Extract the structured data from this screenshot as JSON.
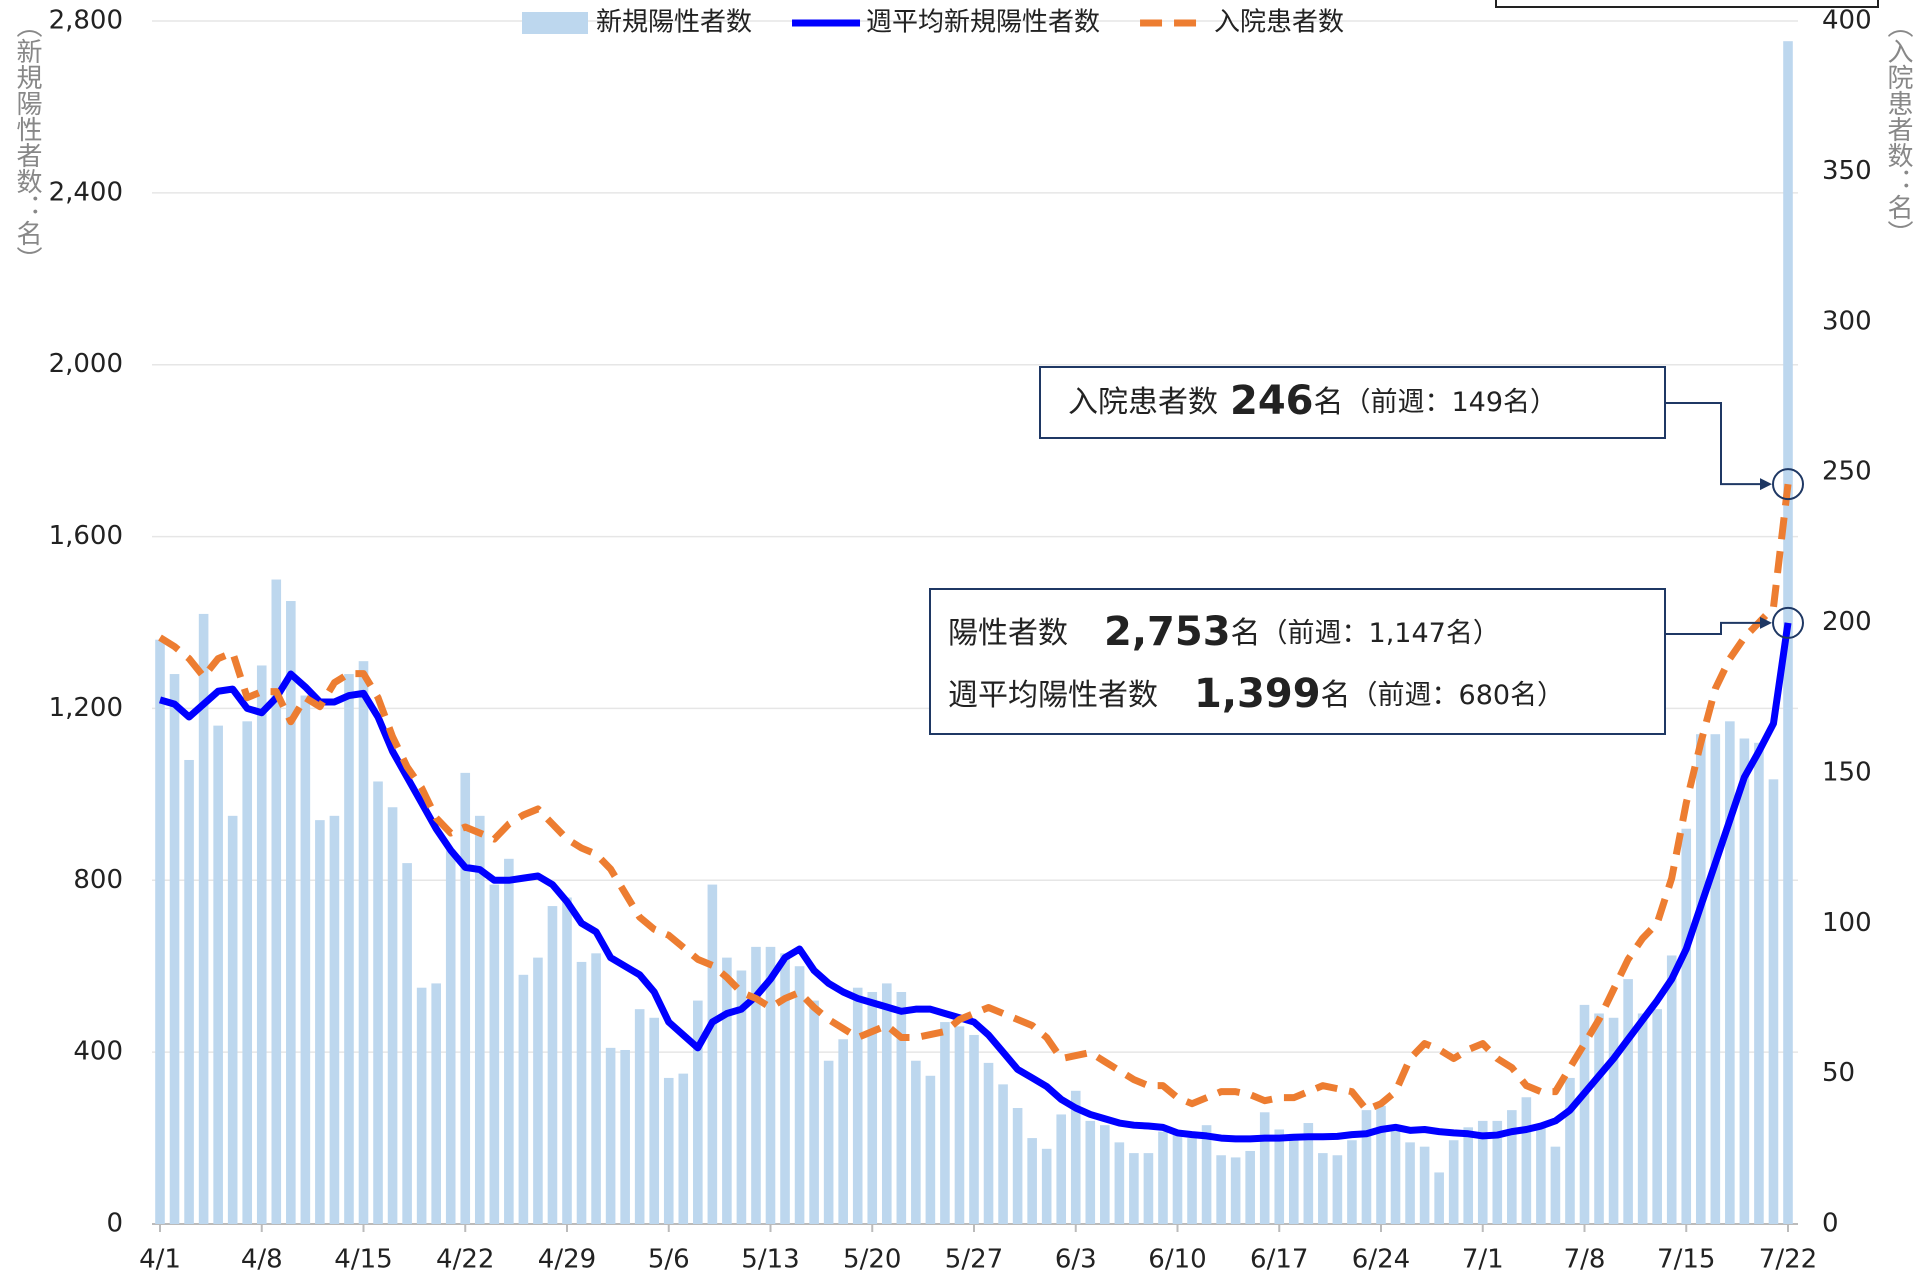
{
  "chart_data": {
    "type": "combo",
    "y_label": "（新規陽性者数：名）",
    "y2_label": "（入院患者数：名）",
    "categories": [
      "4/1",
      null,
      null,
      null,
      null,
      null,
      null,
      "4/8",
      null,
      null,
      null,
      null,
      null,
      null,
      "4/15",
      null,
      null,
      null,
      null,
      null,
      null,
      "4/22",
      null,
      null,
      null,
      null,
      null,
      null,
      "4/29",
      null,
      null,
      null,
      null,
      null,
      null,
      "5/6",
      null,
      null,
      null,
      null,
      null,
      null,
      "5/13",
      null,
      null,
      null,
      null,
      null,
      null,
      "5/20",
      null,
      null,
      null,
      null,
      null,
      null,
      "5/27",
      null,
      null,
      null,
      null,
      null,
      null,
      "6/3",
      null,
      null,
      null,
      null,
      null,
      null,
      "6/10",
      null,
      null,
      null,
      null,
      null,
      null,
      "6/17",
      null,
      null,
      null,
      null,
      null,
      null,
      "6/24",
      null,
      null,
      null,
      null,
      null,
      null,
      "7/1",
      null,
      null,
      null,
      null,
      null,
      null,
      "7/8",
      null,
      null,
      null,
      null,
      null,
      null,
      "7/15",
      null,
      null,
      null,
      null,
      null,
      null,
      "7/22"
    ],
    "series": [
      {
        "name": "新規陽性者数",
        "type": "bar",
        "color": "#bdd7ee",
        "values": [
          1360,
          1280,
          1080,
          1420,
          1160,
          950,
          1170,
          1300,
          1500,
          1450,
          1230,
          940,
          950,
          1280,
          1310,
          1030,
          970,
          840,
          550,
          560,
          870,
          1050,
          950,
          790,
          850,
          580,
          620,
          740,
          760,
          610,
          630,
          410,
          405,
          500,
          480,
          340,
          350,
          520,
          790,
          620,
          590,
          645,
          645,
          630,
          600,
          520,
          380,
          430,
          550,
          540,
          560,
          540,
          380,
          345,
          470,
          460,
          440,
          375,
          325,
          270,
          200,
          175,
          255,
          310,
          240,
          230,
          190,
          165,
          165,
          215,
          210,
          200,
          230,
          160,
          155,
          170,
          260,
          220,
          210,
          235,
          165,
          160,
          195,
          265,
          275,
          230,
          190,
          180,
          120,
          195,
          225,
          240,
          240,
          265,
          295,
          230,
          180,
          340,
          510,
          490,
          480,
          570,
          490,
          500,
          625,
          920,
          1140,
          1140,
          1170,
          1130,
          1120,
          1035,
          2753
        ]
      },
      {
        "name": "週平均新規陽性者数",
        "type": "line",
        "color": "#0000ff",
        "values": [
          1220,
          1210,
          1180,
          1210,
          1240,
          1245,
          1200,
          1190,
          1225,
          1280,
          1250,
          1215,
          1215,
          1230,
          1235,
          1180,
          1100,
          1040,
          980,
          920,
          870,
          830,
          825,
          800,
          800,
          805,
          810,
          790,
          750,
          700,
          680,
          620,
          600,
          580,
          540,
          470,
          440,
          410,
          470,
          490,
          500,
          530,
          570,
          620,
          640,
          590,
          560,
          540,
          525,
          515,
          505,
          495,
          500,
          500,
          490,
          480,
          470,
          440,
          400,
          360,
          340,
          320,
          290,
          270,
          255,
          245,
          235,
          230,
          228,
          225,
          212,
          208,
          205,
          200,
          198,
          198,
          200,
          200,
          202,
          203,
          203,
          204,
          208,
          210,
          220,
          225,
          218,
          220,
          215,
          212,
          210,
          205,
          207,
          215,
          220,
          228,
          240,
          265,
          305,
          345,
          385,
          430,
          475,
          520,
          570,
          640,
          740,
          840,
          940,
          1040,
          1100,
          1165,
          1399
        ]
      },
      {
        "name": "入院患者数",
        "type": "line",
        "axis": "y2",
        "style": "dashed",
        "color": "#ed7d31",
        "values": [
          195,
          192,
          188,
          182,
          188,
          190,
          175,
          177,
          177,
          167,
          175,
          172,
          180,
          183,
          183,
          175,
          162,
          152,
          145,
          135,
          130,
          132,
          130,
          128,
          133,
          136,
          138,
          133,
          128,
          125,
          123,
          118,
          110,
          102,
          98,
          96,
          92,
          88,
          86,
          82,
          77,
          75,
          72,
          75,
          77,
          72,
          68,
          65,
          62,
          64,
          66,
          62,
          62,
          63,
          64,
          68,
          70,
          72,
          70,
          68,
          66,
          62,
          55,
          56,
          57,
          54,
          51,
          48,
          46,
          46,
          42,
          40,
          42,
          44,
          44,
          43,
          41,
          42,
          42,
          44,
          46,
          45,
          44,
          38,
          40,
          44,
          55,
          60,
          58,
          55,
          58,
          60,
          55,
          52,
          46,
          44,
          44,
          52,
          60,
          68,
          78,
          88,
          95,
          100,
          115,
          140,
          160,
          178,
          188,
          195,
          200,
          205,
          246
        ]
      }
    ],
    "ylim": [
      0,
      2800
    ],
    "yticks": [
      0,
      400,
      800,
      {
        "value": 1200,
        "label": "1,200"
      },
      {
        "value": 1600,
        "label": "1,600"
      },
      {
        "value": 2000,
        "label": "2,000"
      },
      {
        "value": 2400,
        "label": "2,400"
      },
      {
        "value": 2800,
        "label": "2,800"
      }
    ],
    "y2lim": [
      0,
      400
    ],
    "y2ticks": [
      0,
      50,
      100,
      150,
      200,
      250,
      300,
      350,
      400
    ],
    "grid": true,
    "legend": "top",
    "annotations": [
      {
        "label": "入院患者数",
        "value": "246",
        "unit": "名",
        "prev": "（前週：149名）"
      },
      {
        "label": "陽性者数",
        "value": "2,753",
        "unit": "名",
        "prev": "（前週：1,147名）"
      },
      {
        "label": "週平均陽性者数",
        "value": "1,399",
        "unit": "名",
        "prev": "（前週：680名）"
      }
    ]
  }
}
